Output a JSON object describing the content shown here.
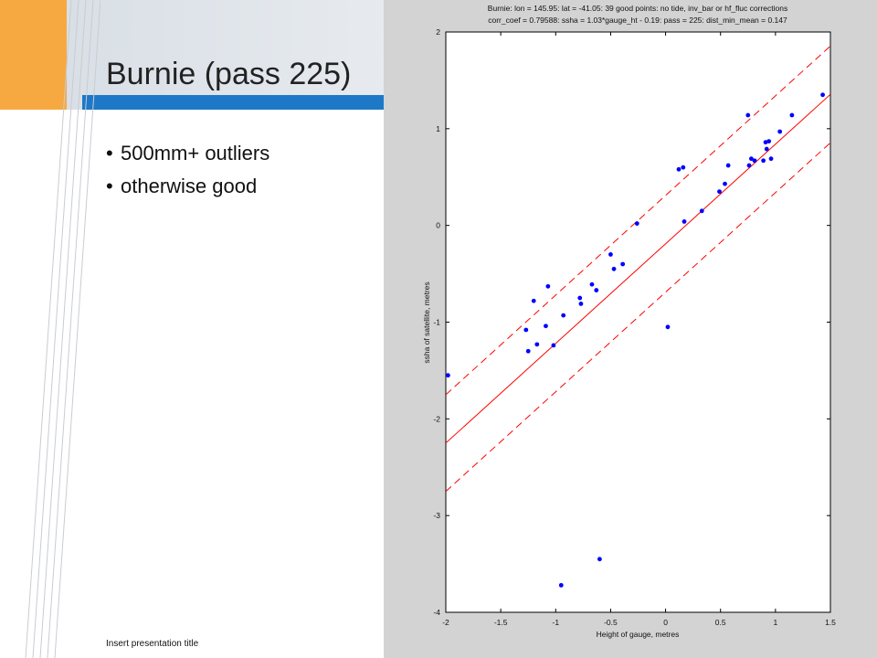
{
  "slide": {
    "title": "Burnie (pass 225)",
    "bullets": [
      "500mm+ outliers",
      "otherwise good"
    ],
    "footer": "Insert presentation title"
  },
  "colors": {
    "accent_orange": "#f7a941",
    "header_blue": "#1e78c8",
    "points": "#0000ff",
    "fit_line": "#ff0000",
    "chart_background": "#d3d3d3"
  },
  "chart_data": {
    "type": "scatter",
    "title_lines": [
      "Burnie: lon = 145.95: lat = -41.05: 39 good points: no tide, inv_bar or hf_fluc corrections",
      "corr_coef = 0.79588: ssha = 1.03*gauge_ht - 0.19: pass = 225: dist_min_mean = 0.147"
    ],
    "xlabel": "Height of gauge, metres",
    "ylabel": "ssha of satellite, metres",
    "xlim": [
      -2,
      1.5
    ],
    "ylim": [
      -4,
      2
    ],
    "xticks": [
      "-2",
      "-1.5",
      "-1",
      "-0.5",
      "0",
      "0.5",
      "1",
      "1.5"
    ],
    "yticks": [
      "2",
      "1",
      "0",
      "-1",
      "-2",
      "-3",
      "-4"
    ],
    "xtick_values": [
      -2,
      -1.5,
      -1,
      -0.5,
      0,
      0.5,
      1,
      1.5
    ],
    "ytick_values": [
      2,
      1,
      0,
      -1,
      -2,
      -3,
      -4
    ],
    "grid": false,
    "fit": {
      "slope": 1.03,
      "intercept": -0.19,
      "band_offset": 0.5
    },
    "points": {
      "x": [
        -1.98,
        -1.27,
        -1.25,
        -1.2,
        -1.17,
        -1.09,
        -1.07,
        -1.02,
        -0.93,
        -0.77,
        -0.78,
        -0.67,
        -0.63,
        -0.6,
        -0.5,
        -0.47,
        -0.39,
        -0.26,
        0.02,
        0.12,
        0.16,
        0.17,
        0.33,
        0.49,
        0.54,
        0.57,
        0.75,
        0.76,
        0.78,
        0.81,
        0.89,
        0.91,
        0.92,
        0.94,
        0.96,
        1.04,
        1.15,
        1.43,
        -0.95
      ],
      "y": [
        -1.55,
        -1.08,
        -1.3,
        -0.78,
        -1.23,
        -1.04,
        -0.63,
        -1.24,
        -0.93,
        -0.81,
        -0.75,
        -0.61,
        -0.67,
        -3.45,
        -0.3,
        -0.45,
        -0.4,
        0.02,
        -1.05,
        0.58,
        0.6,
        0.04,
        0.15,
        0.35,
        0.43,
        0.62,
        1.14,
        0.62,
        0.69,
        0.67,
        0.67,
        0.86,
        0.79,
        0.87,
        0.69,
        0.97,
        1.14,
        1.35,
        -3.72
      ]
    }
  }
}
